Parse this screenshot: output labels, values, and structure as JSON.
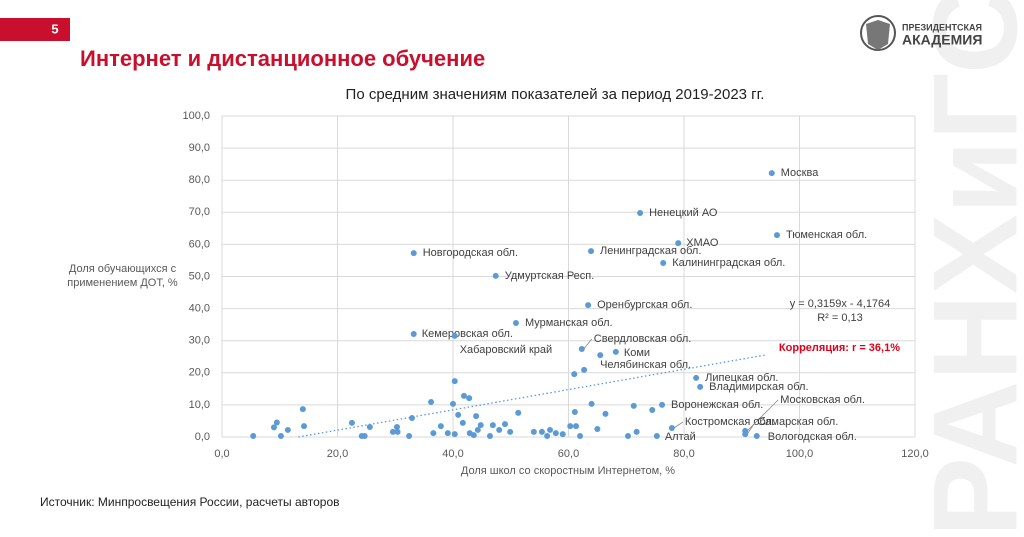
{
  "slide": {
    "number": "5",
    "title": "Интернет и дистанционное обучение",
    "logo_line1": "ПРЕЗИДЕНТСКАЯ",
    "logo_line2": "АКАДЕМИЯ",
    "watermark": "РАНХиГС",
    "source": "Источник: Минпросвещения России, расчеты авторов"
  },
  "chart_data": {
    "type": "scatter",
    "title": "По средним значениям показателей за период 2019-2023 гг.",
    "x_label": "Доля школ со скоростным Интернетом, %",
    "y_label": "Доля обучающихся с применением ДОТ, %",
    "color": "#5b9bd5",
    "grid": true,
    "xlim": [
      0,
      120
    ],
    "ylim": [
      0,
      100
    ],
    "xticks": [
      {
        "value": 0,
        "label": "0,0"
      },
      {
        "value": 20,
        "label": "20,0"
      },
      {
        "value": 40,
        "label": "40,0"
      },
      {
        "value": 60,
        "label": "60,0"
      },
      {
        "value": 80,
        "label": "80,0"
      },
      {
        "value": 100,
        "label": "100,0"
      },
      {
        "value": 120,
        "label": "120,0"
      }
    ],
    "yticks": [
      {
        "value": 0,
        "label": "0,0"
      },
      {
        "value": 10,
        "label": "10,0"
      },
      {
        "value": 20,
        "label": "20,0"
      },
      {
        "value": 30,
        "label": "30,0"
      },
      {
        "value": 40,
        "label": "40,0"
      },
      {
        "value": 50,
        "label": "50,0"
      },
      {
        "value": 60,
        "label": "60,0"
      },
      {
        "value": 70,
        "label": "70,0"
      },
      {
        "value": 80,
        "label": "80,0"
      },
      {
        "value": 90,
        "label": "90,0"
      },
      {
        "value": 100,
        "label": "100,0"
      }
    ],
    "x": [
      95.2,
      72.4,
      79.0,
      96.1,
      63.9,
      76.4,
      33.2,
      47.4,
      63.4,
      50.9,
      33.2,
      40.3,
      62.3,
      68.2,
      62.7,
      82.1,
      82.8,
      76.2,
      90.6,
      77.9,
      75.3,
      90.6,
      92.6,
      5.4,
      9,
      9.5,
      10.2,
      11.4,
      14,
      14.2,
      22.5,
      24.2,
      24.7,
      25.6,
      29.6,
      30.3,
      30.4,
      32.4,
      32.9,
      36.2,
      36.6,
      37.9,
      39.1,
      40,
      40.3,
      40.9,
      40.3,
      41.7,
      41.9,
      42.8,
      42.9,
      43.6,
      44,
      44.3,
      44.8,
      46.4,
      46.9,
      48,
      49,
      49.9,
      51.3,
      54,
      55.4,
      56.3,
      56.8,
      57.8,
      59,
      60.3,
      61.1,
      61.3,
      62,
      64,
      65,
      65.5,
      66.4,
      70.3,
      71.3,
      71.8,
      74.5,
      61
    ],
    "values": [
      82.2,
      69.8,
      60.4,
      62.9,
      57.9,
      54.2,
      57.3,
      50.2,
      41.1,
      35.5,
      32.1,
      31.5,
      27.4,
      26.5,
      20.9,
      18.4,
      15.6,
      10.0,
      1.9,
      2.8,
      0.3,
      0.9,
      0.3,
      0.3,
      3,
      4.5,
      0.3,
      2.2,
      8.7,
      3.4,
      4.4,
      0.3,
      0.3,
      3.1,
      1.6,
      3.1,
      1.6,
      0.3,
      5.9,
      10.9,
      1.2,
      3.4,
      1.2,
      10.3,
      17.4,
      6.9,
      0.9,
      4.4,
      12.8,
      12.1,
      1.2,
      0.6,
      6.5,
      2.2,
      3.7,
      0.3,
      3.7,
      2.2,
      4,
      1.6,
      7.5,
      1.6,
      1.6,
      0.3,
      2.2,
      1.2,
      0.9,
      3.4,
      7.8,
      3.4,
      0.3,
      10.3,
      2.5,
      25.5,
      7.2,
      0.3,
      9.7,
      1.6,
      8.4,
      19.6
    ],
    "labels": [
      "Москва",
      "Ненецкий АО",
      "ХМАО",
      "Тюменская обл.",
      "Ленинградская обл.",
      "Калининградская обл.",
      "Новгородская обл.",
      "Удмуртская Респ.",
      "Оренбургская обл.",
      "Мурманская обл.",
      "Кемеровская обл.",
      "Хабаровский край",
      "Свердловская обл.",
      "Коми",
      "Челябинская обл.",
      "Липецкая обл.",
      "Владимирская обл.",
      "Воронежская обл.",
      "Московская обл.",
      "Костромская обл.",
      "Алтай",
      "Самарская обл.",
      "Вологодская обл.",
      null,
      null,
      null,
      null,
      null,
      null,
      null,
      null,
      null,
      null,
      null,
      null,
      null,
      null,
      null,
      null,
      null,
      null,
      null,
      null,
      null,
      null,
      null,
      null,
      null,
      null,
      null,
      null,
      null,
      null,
      null,
      null,
      null,
      null,
      null,
      null,
      null,
      null,
      null,
      null,
      null,
      null,
      null,
      null,
      null,
      null,
      null,
      null,
      null,
      null,
      null,
      null,
      null
    ],
    "trendline": {
      "equation": "y = 0,3159x - 4,1764",
      "r2": "R² = 0,13",
      "slope": 0.3159,
      "intercept": -4.1764,
      "xrange": [
        13.2,
        94
      ],
      "color": "#5b9bd5"
    },
    "annotation": "Корреляция: r = 36,1%",
    "annotation_color": "#e0001b"
  }
}
